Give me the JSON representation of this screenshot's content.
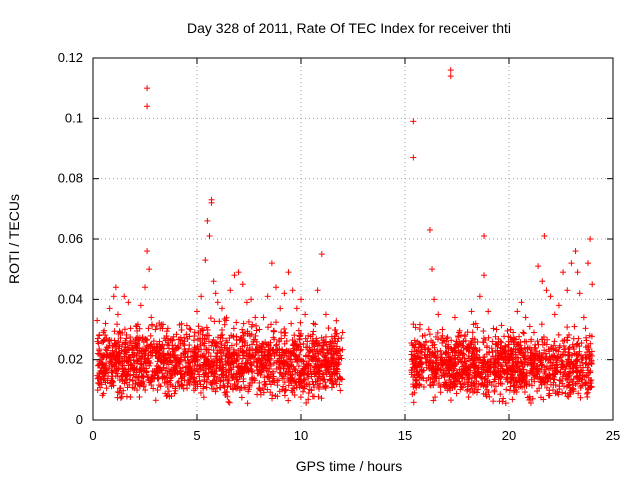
{
  "chart_data": {
    "type": "scatter",
    "title": "Day 328 of 2011, Rate Of TEC Index for receiver thti",
    "xlabel": "GPS time / hours",
    "ylabel": "ROTI / TECUs",
    "xlim": [
      0,
      25
    ],
    "ylim": [
      0,
      0.12
    ],
    "xticks": [
      0,
      5,
      10,
      15,
      20,
      25
    ],
    "xtick_labels": [
      "0",
      "5",
      "10",
      "15",
      "20",
      "25"
    ],
    "yticks": [
      0,
      0.02,
      0.04,
      0.06,
      0.08,
      0.1,
      0.12
    ],
    "ytick_labels": [
      "0",
      "0.02",
      "0.04",
      "0.06",
      "0.08",
      "0.1",
      "0.12"
    ],
    "grid": true,
    "marker": "+",
    "color": "#ff0000",
    "series": [
      {
        "name": "thti",
        "x": [
          0.2,
          0.3,
          0.4,
          0.5,
          0.6,
          0.8,
          1.0,
          1.1,
          1.2,
          1.3,
          1.5,
          1.7,
          1.9,
          2.1,
          2.3,
          2.5,
          2.6,
          2.6,
          2.6,
          2.7,
          2.8,
          3.0,
          3.2,
          3.4,
          3.6,
          3.8,
          4.0,
          4.2,
          4.4,
          4.6,
          4.8,
          5.0,
          5.2,
          5.4,
          5.5,
          5.6,
          5.7,
          5.7,
          5.8,
          5.9,
          6.0,
          6.2,
          6.4,
          6.6,
          6.8,
          7.0,
          7.2,
          7.4,
          7.6,
          7.8,
          8.0,
          8.2,
          8.4,
          8.6,
          8.8,
          9.0,
          9.2,
          9.4,
          9.6,
          9.8,
          10.0,
          10.2,
          10.4,
          10.6,
          10.8,
          11.0,
          11.2,
          11.4,
          11.6,
          11.8,
          12.0,
          15.4,
          15.4,
          15.5,
          15.6,
          15.8,
          16.0,
          16.2,
          16.3,
          16.4,
          16.6,
          16.8,
          17.0,
          17.2,
          17.2,
          17.4,
          17.6,
          17.8,
          18.0,
          18.2,
          18.4,
          18.6,
          18.8,
          18.8,
          19.0,
          19.2,
          19.4,
          19.6,
          19.8,
          20.0,
          20.2,
          20.4,
          20.6,
          20.8,
          21.0,
          21.2,
          21.4,
          21.6,
          21.7,
          21.8,
          22.0,
          22.2,
          22.4,
          22.6,
          22.8,
          23.0,
          23.2,
          23.3,
          23.4,
          23.6,
          23.8,
          23.9,
          24.0
        ],
        "y": [
          0.033,
          0.028,
          0.016,
          0.021,
          0.032,
          0.037,
          0.041,
          0.044,
          0.035,
          0.029,
          0.041,
          0.039,
          0.024,
          0.031,
          0.038,
          0.044,
          0.104,
          0.11,
          0.056,
          0.05,
          0.034,
          0.03,
          0.026,
          0.022,
          0.027,
          0.019,
          0.018,
          0.016,
          0.015,
          0.017,
          0.021,
          0.036,
          0.041,
          0.053,
          0.066,
          0.061,
          0.073,
          0.072,
          0.046,
          0.042,
          0.039,
          0.037,
          0.033,
          0.043,
          0.048,
          0.049,
          0.045,
          0.039,
          0.04,
          0.034,
          0.03,
          0.034,
          0.041,
          0.052,
          0.044,
          0.037,
          0.042,
          0.049,
          0.043,
          0.037,
          0.04,
          0.035,
          0.024,
          0.032,
          0.043,
          0.055,
          0.035,
          0.026,
          0.022,
          0.027,
          0.029,
          0.099,
          0.087,
          0.025,
          0.021,
          0.024,
          0.026,
          0.063,
          0.05,
          0.04,
          0.035,
          0.03,
          0.027,
          0.116,
          0.114,
          0.034,
          0.029,
          0.026,
          0.024,
          0.036,
          0.032,
          0.041,
          0.061,
          0.048,
          0.036,
          0.026,
          0.03,
          0.024,
          0.021,
          0.025,
          0.029,
          0.036,
          0.039,
          0.034,
          0.031,
          0.029,
          0.051,
          0.046,
          0.061,
          0.043,
          0.041,
          0.035,
          0.038,
          0.049,
          0.043,
          0.052,
          0.056,
          0.049,
          0.042,
          0.034,
          0.052,
          0.06,
          0.045
        ],
        "dense_bands": [
          {
            "x_range": [
              0.2,
              12.0
            ],
            "y_range": [
              0.004,
              0.032
            ]
          },
          {
            "x_range": [
              15.3,
              24.0
            ],
            "y_range": [
              0.004,
              0.03
            ]
          }
        ]
      }
    ]
  }
}
